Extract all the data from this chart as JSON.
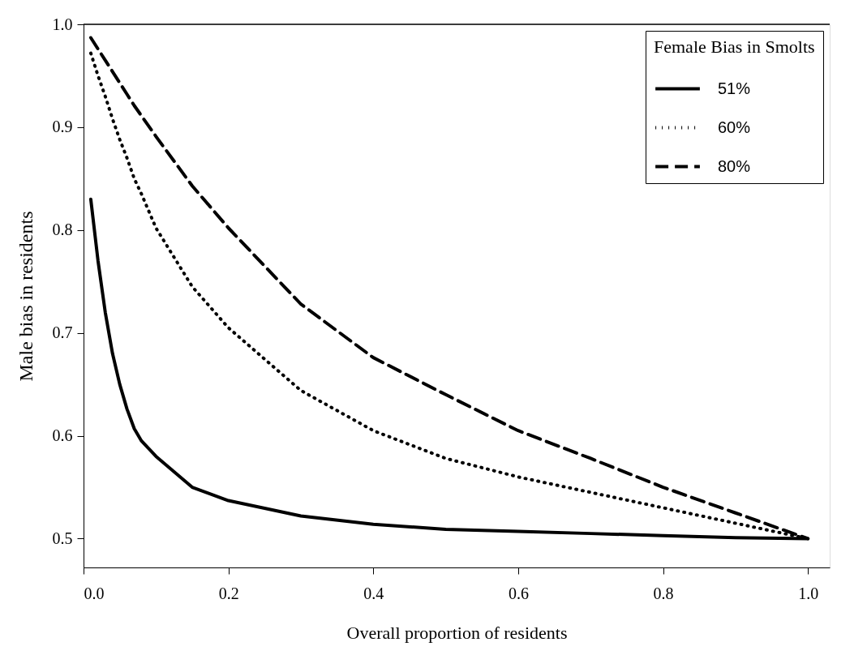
{
  "chart_data": {
    "type": "line",
    "xlabel": "Overall proportion of residents",
    "ylabel": "Male bias in residents",
    "legend_title": "Female Bias in Smolts",
    "legend": "top right",
    "grid": false,
    "marker": "none",
    "xlim": [
      0.0,
      1.03
    ],
    "ylim": [
      0.472,
      1.0
    ],
    "xticks": [
      {
        "value": 0,
        "label": "0.0"
      },
      0.2,
      0.4,
      0.6,
      0.8,
      {
        "value": 1,
        "label": "1.0"
      }
    ],
    "yticks": [
      0.5,
      0.6,
      0.7,
      0.8,
      0.9,
      {
        "value": 1,
        "label": "1.0"
      }
    ],
    "x": [
      0.01,
      0.02,
      0.03,
      0.04,
      0.05,
      0.06,
      0.07,
      0.08,
      0.1,
      0.15,
      0.2,
      0.3,
      0.4,
      0.5,
      0.6,
      0.7,
      0.8,
      0.9,
      1.0
    ],
    "series": [
      {
        "name": "51%",
        "color": "#000000",
        "line_style": "solid",
        "values": [
          0.83,
          0.77,
          0.72,
          0.68,
          0.65,
          0.626,
          0.607,
          0.595,
          0.58,
          0.55,
          0.537,
          0.522,
          0.514,
          0.509,
          0.507,
          0.505,
          0.503,
          0.501,
          0.5
        ]
      },
      {
        "name": "60%",
        "color": "#000000",
        "line_style": "dotted",
        "values": [
          0.972,
          0.95,
          0.93,
          0.908,
          0.888,
          0.87,
          0.85,
          0.835,
          0.802,
          0.745,
          0.705,
          0.644,
          0.605,
          0.578,
          0.56,
          0.545,
          0.53,
          0.515,
          0.5
        ]
      },
      {
        "name": "80%",
        "color": "#000000",
        "line_style": "dashed",
        "values": [
          0.987,
          0.976,
          0.965,
          0.954,
          0.943,
          0.932,
          0.921,
          0.911,
          0.891,
          0.843,
          0.802,
          0.728,
          0.676,
          0.64,
          0.605,
          0.578,
          0.55,
          0.525,
          0.5
        ]
      }
    ]
  }
}
